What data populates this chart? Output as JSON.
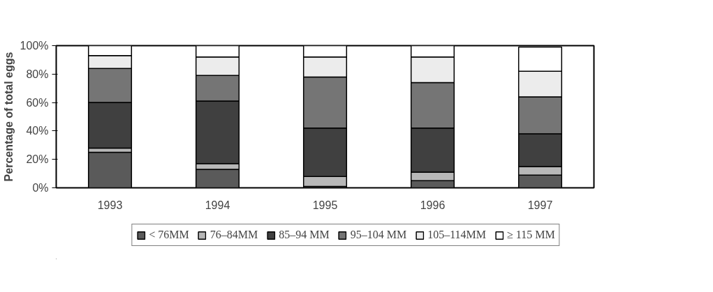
{
  "chart_data": {
    "type": "bar",
    "stacked": true,
    "ylabel": "Percentage of total eggs",
    "categories": [
      "1993",
      "1994",
      "1995",
      "1996",
      "1997"
    ],
    "series": [
      {
        "name": "< 76MM",
        "color": "#5a5a5a",
        "values": [
          25,
          13,
          1,
          5,
          9
        ]
      },
      {
        "name": "76–84MM",
        "color": "#b8b8b8",
        "values": [
          3,
          4,
          7,
          6,
          6
        ]
      },
      {
        "name": "85–94 MM",
        "color": "#404040",
        "values": [
          32,
          44,
          34,
          31,
          23
        ]
      },
      {
        "name": "95–104 MM",
        "color": "#757575",
        "values": [
          24,
          18,
          36,
          32,
          26
        ]
      },
      {
        "name": "105–114MM",
        "color": "#ececec",
        "values": [
          9,
          13,
          14,
          18,
          18
        ]
      },
      {
        "name": "≥ 115 MM",
        "color": "#ffffff",
        "values": [
          7,
          8,
          8,
          8,
          17
        ]
      }
    ],
    "ylim": [
      0,
      100
    ],
    "yticks": [
      {
        "value": 0,
        "label": "0%"
      },
      {
        "value": 20,
        "label": "20%"
      },
      {
        "value": 40,
        "label": "40%"
      },
      {
        "value": 60,
        "label": "60%"
      },
      {
        "value": 80,
        "label": "80%"
      },
      {
        "value": 100,
        "label": "100%"
      }
    ],
    "grid": false,
    "legend": "bottom"
  }
}
